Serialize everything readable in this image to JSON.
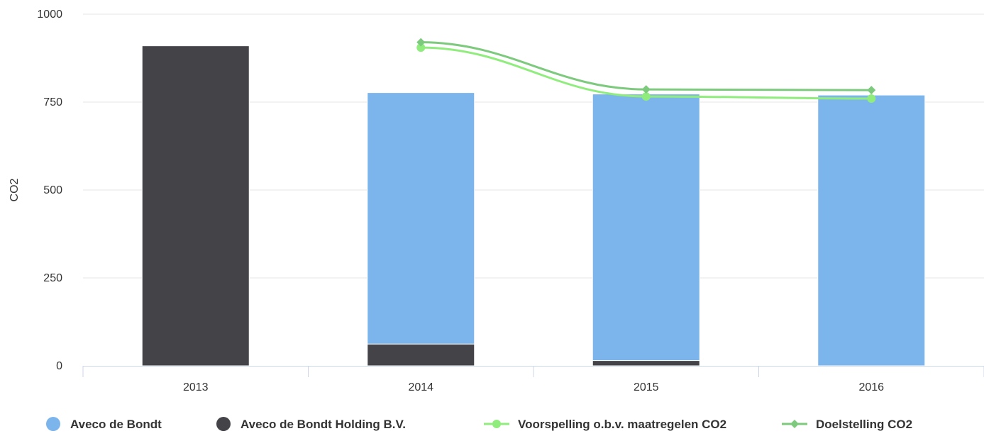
{
  "chart_data": {
    "type": "bar",
    "stacked": true,
    "categories": [
      "2013",
      "2014",
      "2015",
      "2016"
    ],
    "ylabel": "CO2",
    "ylim": [
      0,
      1000
    ],
    "yticks": [
      0,
      250,
      500,
      750,
      1000
    ],
    "grid": true,
    "legend_position": "bottom",
    "series": [
      {
        "name": "Aveco de Bondt",
        "kind": "bar",
        "color": "#7cb5ec",
        "values": [
          0,
          715,
          758,
          770
        ]
      },
      {
        "name": "Aveco de Bondt Holding B.V.",
        "kind": "bar",
        "color": "#434348",
        "values": [
          910,
          62,
          15,
          0
        ]
      },
      {
        "name": "Voorspelling o.b.v. maatregelen CO2",
        "kind": "line",
        "marker": "circle",
        "color": "#90ed7d",
        "values": [
          null,
          905,
          766,
          760
        ]
      },
      {
        "name": "Doelstelling CO2",
        "kind": "line",
        "marker": "diamond",
        "color": "#7dc97d",
        "values": [
          null,
          920,
          786,
          784
        ]
      }
    ]
  }
}
